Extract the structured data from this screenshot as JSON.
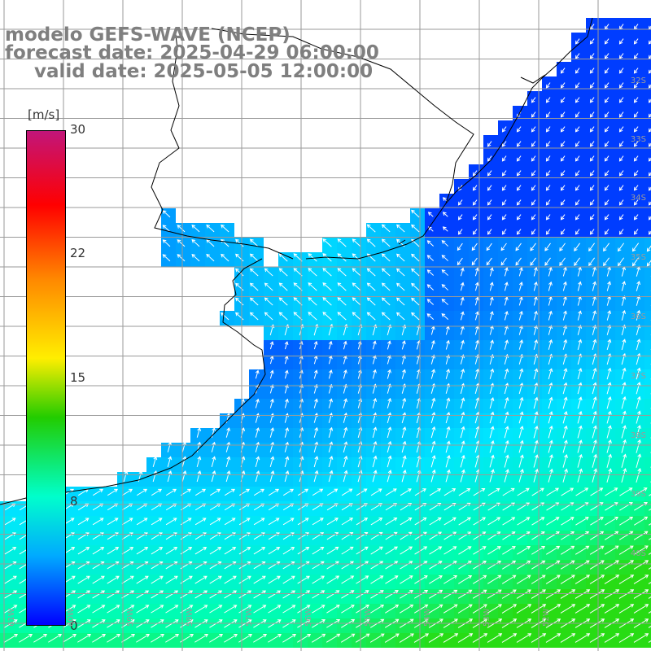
{
  "title": {
    "line1": "modelo GEFS-WAVE (NCEP)",
    "line2": "forecast date: 2025-04-29 06:00:00",
    "line3": "valid date: 2025-05-05 12:00:00"
  },
  "colorbar": {
    "unit": "[m/s]",
    "ticks": [
      "30",
      "22",
      "15",
      "8",
      "0"
    ],
    "stops": [
      "#c2157a",
      "#ff0000",
      "#ff8800",
      "#ffee00",
      "#22cc00",
      "#00ffcc",
      "#00aaff",
      "#0000ff"
    ]
  },
  "lat_labels": [
    "32S",
    "33S",
    "34S",
    "35S",
    "36S",
    "37S",
    "38S",
    "39S",
    "40S"
  ],
  "lon_labels": [
    "61W",
    "60W",
    "59W",
    "58W",
    "57W",
    "56W",
    "55W",
    "54W",
    "53W",
    "52W"
  ],
  "colors": {
    "land": "#ffffff",
    "grid": "#9a9a9a",
    "coast": "#000000",
    "arrow": "#ffffff"
  }
}
